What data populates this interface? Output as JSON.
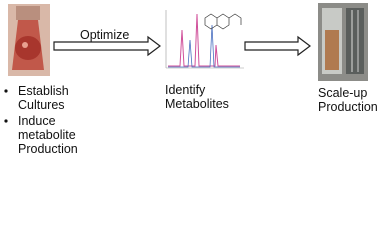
{
  "arrow_label": "Optimize",
  "left_bullets": [
    [
      "Establish",
      "Cultures"
    ],
    [
      "Induce",
      "metabolite",
      "Production"
    ]
  ],
  "middle_label": [
    "Identify",
    "Metabolites"
  ],
  "right_label": [
    "Scale-up",
    "Production"
  ]
}
